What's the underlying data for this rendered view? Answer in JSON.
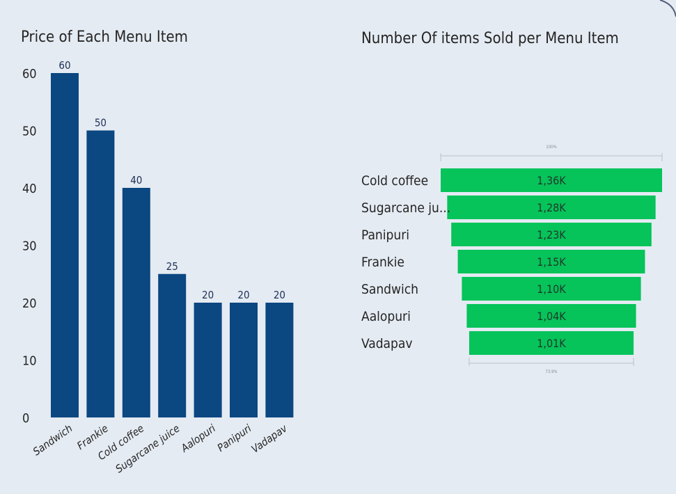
{
  "chart_data": [
    {
      "type": "bar",
      "title": "Price of Each Menu Item",
      "categories": [
        "Sandwich",
        "Frankie",
        "Cold coffee",
        "Sugarcane juice",
        "Aalopuri",
        "Panipuri",
        "Vadapav"
      ],
      "values": [
        60,
        50,
        40,
        25,
        20,
        20,
        20
      ],
      "data_labels": [
        "60",
        "50",
        "40",
        "25",
        "20",
        "20",
        "20"
      ],
      "y_ticks": [
        "0",
        "10",
        "20",
        "30",
        "40",
        "50",
        "60"
      ],
      "ylim": [
        0,
        60
      ],
      "bar_color": "#0b4781",
      "grid": false
    },
    {
      "type": "funnel",
      "title": "Number Of items Sold per Menu Item",
      "categories": [
        "Cold coffee",
        "Sugarcane ju...",
        "Panipuri",
        "Frankie",
        "Sandwich",
        "Aalopuri",
        "Vadapav"
      ],
      "values": [
        1360,
        1280,
        1230,
        1150,
        1100,
        1040,
        1010
      ],
      "data_labels": [
        "1,36K",
        "1,28K",
        "1,23K",
        "1,15K",
        "1,10K",
        "1,04K",
        "1,01K"
      ],
      "top_percent_label": "100%",
      "bottom_percent_label": "73.9%",
      "bar_color": "#06c35a"
    }
  ]
}
